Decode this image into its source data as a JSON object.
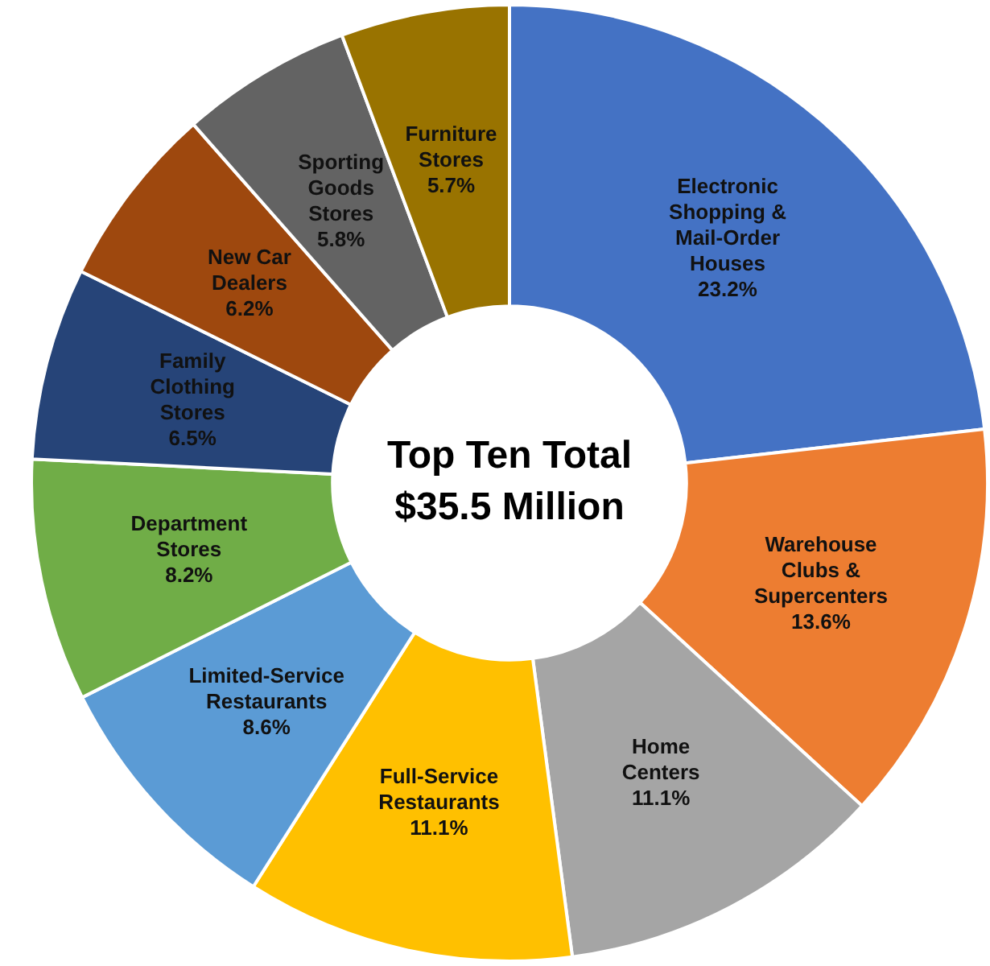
{
  "chart_data": {
    "type": "donut",
    "categories": [
      "Electronic Shopping & Mail-Order Houses",
      "Warehouse Clubs & Supercenters",
      "Home Centers",
      "Full-Service Restaurants",
      "Limited-Service Restaurants",
      "Department Stores",
      "Family Clothing Stores",
      "New Car Dealers",
      "Sporting Goods Stores",
      "Furniture Stores"
    ],
    "values": [
      23.2,
      13.6,
      11.1,
      11.1,
      8.6,
      8.2,
      6.5,
      6.2,
      5.8,
      5.7
    ],
    "value_labels": [
      "23.2%",
      "13.6%",
      "11.1%",
      "11.1%",
      "8.6%",
      "8.2%",
      "6.5%",
      "6.2%",
      "5.8%",
      "5.7%"
    ],
    "colors": [
      "#4472c4",
      "#ed7d31",
      "#a5a5a5",
      "#ffc000",
      "#5b9bd5",
      "#70ad47",
      "#264478",
      "#9e480e",
      "#636363",
      "#997300"
    ],
    "annotations": [
      "Top Ten Total",
      "$35.5 Million"
    ],
    "legend": false
  }
}
